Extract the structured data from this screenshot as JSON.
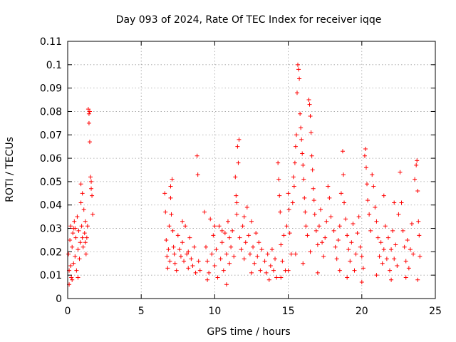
{
  "chart_data": {
    "type": "scatter",
    "title": "Day 093 of 2024, Rate Of TEC Index for receiver iqqe",
    "xlabel": "GPS time / hours",
    "ylabel": "ROTI / TECUs",
    "xlim": [
      0,
      25
    ],
    "ylim": [
      0,
      0.11
    ],
    "xticks": [
      0,
      5,
      10,
      15,
      20,
      25
    ],
    "xtick_labels": [
      "0",
      "5",
      "10",
      "15",
      "20",
      "25"
    ],
    "yticks": [
      0,
      0.01,
      0.02,
      0.03,
      0.04,
      0.05,
      0.06,
      0.07,
      0.08,
      0.09,
      0.1,
      0.11
    ],
    "ytick_labels": [
      "0",
      "0.01",
      "0.02",
      "0.03",
      "0.04",
      "0.05",
      "0.06",
      "0.07",
      "0.08",
      "0.09",
      "0.1",
      "0.11"
    ],
    "grid": true,
    "marker": "+",
    "marker_color": "#ff0000",
    "series": [
      {
        "name": "ROTI",
        "points": [
          [
            0.05,
            0.019
          ],
          [
            0.1,
            0.012
          ],
          [
            0.15,
            0.025
          ],
          [
            0.2,
            0.031
          ],
          [
            0.25,
            0.009
          ],
          [
            0.3,
            0.022
          ],
          [
            0.35,
            0.028
          ],
          [
            0.4,
            0.015
          ],
          [
            0.45,
            0.033
          ],
          [
            0.5,
            0.018
          ],
          [
            0.55,
            0.026
          ],
          [
            0.6,
            0.012
          ],
          [
            0.65,
            0.035
          ],
          [
            0.7,
            0.021
          ],
          [
            0.75,
            0.029
          ],
          [
            0.8,
            0.017
          ],
          [
            0.85,
            0.024
          ],
          [
            0.9,
            0.041
          ],
          [
            0.95,
            0.031
          ],
          [
            1.0,
            0.045
          ],
          [
            1.05,
            0.022
          ],
          [
            1.1,
            0.038
          ],
          [
            1.15,
            0.028
          ],
          [
            1.2,
            0.033
          ],
          [
            1.25,
            0.019
          ],
          [
            1.3,
            0.026
          ],
          [
            1.35,
            0.031
          ],
          [
            1.4,
            0.081
          ],
          [
            1.45,
            0.079
          ],
          [
            1.5,
            0.08
          ],
          [
            1.45,
            0.075
          ],
          [
            1.5,
            0.067
          ],
          [
            1.55,
            0.052
          ],
          [
            1.6,
            0.047
          ],
          [
            1.65,
            0.044
          ],
          [
            1.7,
            0.036
          ],
          [
            0.2,
            0.014
          ],
          [
            0.3,
            0.008
          ],
          [
            0.5,
            0.03
          ],
          [
            0.7,
            0.009
          ],
          [
            0.9,
            0.049
          ],
          [
            1.0,
            0.026
          ],
          [
            1.2,
            0.024
          ],
          [
            1.6,
            0.05
          ],
          [
            0.1,
            0.006
          ],
          [
            0.4,
            0.03
          ],
          [
            6.6,
            0.045
          ],
          [
            6.65,
            0.037
          ],
          [
            6.7,
            0.025
          ],
          [
            6.75,
            0.018
          ],
          [
            6.8,
            0.013
          ],
          [
            6.85,
            0.021
          ],
          [
            6.9,
            0.031
          ],
          [
            6.95,
            0.016
          ],
          [
            7.0,
            0.048
          ],
          [
            7.05,
            0.036
          ],
          [
            7.1,
            0.051
          ],
          [
            7.15,
            0.029
          ],
          [
            7.2,
            0.022
          ],
          [
            7.25,
            0.019
          ],
          [
            7.3,
            0.015
          ],
          [
            7.4,
            0.012
          ],
          [
            7.5,
            0.027
          ],
          [
            7.6,
            0.021
          ],
          [
            7.7,
            0.018
          ],
          [
            7.8,
            0.024
          ],
          [
            7.9,
            0.016
          ],
          [
            8.0,
            0.031
          ],
          [
            8.1,
            0.019
          ],
          [
            8.2,
            0.013
          ],
          [
            8.3,
            0.026
          ],
          [
            8.4,
            0.017
          ],
          [
            8.5,
            0.014
          ],
          [
            8.6,
            0.022
          ],
          [
            8.7,
            0.011
          ],
          [
            8.8,
            0.061
          ],
          [
            8.85,
            0.053
          ],
          [
            8.9,
            0.016
          ],
          [
            9.0,
            0.012
          ],
          [
            7.0,
            0.043
          ],
          [
            7.8,
            0.033
          ],
          [
            8.2,
            0.02
          ],
          [
            9.3,
            0.037
          ],
          [
            9.4,
            0.022
          ],
          [
            9.5,
            0.016
          ],
          [
            9.6,
            0.011
          ],
          [
            9.7,
            0.034
          ],
          [
            9.8,
            0.019
          ],
          [
            9.9,
            0.027
          ],
          [
            10.0,
            0.014
          ],
          [
            10.1,
            0.021
          ],
          [
            10.2,
            0.009
          ],
          [
            10.3,
            0.031
          ],
          [
            10.4,
            0.017
          ],
          [
            10.5,
            0.024
          ],
          [
            10.6,
            0.012
          ],
          [
            10.7,
            0.028
          ],
          [
            10.8,
            0.019
          ],
          [
            10.9,
            0.033
          ],
          [
            11.0,
            0.015
          ],
          [
            11.1,
            0.022
          ],
          [
            11.2,
            0.029
          ],
          [
            11.3,
            0.018
          ],
          [
            11.4,
            0.052
          ],
          [
            11.45,
            0.044
          ],
          [
            11.5,
            0.036
          ],
          [
            11.55,
            0.065
          ],
          [
            11.6,
            0.058
          ],
          [
            11.65,
            0.068
          ],
          [
            11.7,
            0.026
          ],
          [
            11.8,
            0.021
          ],
          [
            11.9,
            0.031
          ],
          [
            12.0,
            0.017
          ],
          [
            12.1,
            0.024
          ],
          [
            12.2,
            0.039
          ],
          [
            12.3,
            0.027
          ],
          [
            12.4,
            0.019
          ],
          [
            12.5,
            0.033
          ],
          [
            12.6,
            0.022
          ],
          [
            12.7,
            0.015
          ],
          [
            12.8,
            0.028
          ],
          [
            12.9,
            0.018
          ],
          [
            13.0,
            0.024
          ],
          [
            13.1,
            0.012
          ],
          [
            13.2,
            0.021
          ],
          [
            10.0,
            0.031
          ],
          [
            10.5,
            0.029
          ],
          [
            11.0,
            0.026
          ],
          [
            11.5,
            0.041
          ],
          [
            12.0,
            0.035
          ],
          [
            9.5,
            0.008
          ],
          [
            10.8,
            0.006
          ],
          [
            12.5,
            0.011
          ],
          [
            13.4,
            0.016
          ],
          [
            13.5,
            0.011
          ],
          [
            13.6,
            0.019
          ],
          [
            13.7,
            0.008
          ],
          [
            13.8,
            0.014
          ],
          [
            13.9,
            0.021
          ],
          [
            14.0,
            0.012
          ],
          [
            14.1,
            0.017
          ],
          [
            14.2,
            0.009
          ],
          [
            14.3,
            0.058
          ],
          [
            14.35,
            0.051
          ],
          [
            14.4,
            0.044
          ],
          [
            14.45,
            0.037
          ],
          [
            14.5,
            0.023
          ],
          [
            14.6,
            0.016
          ],
          [
            14.7,
            0.027
          ],
          [
            14.8,
            0.012
          ],
          [
            14.9,
            0.031
          ],
          [
            15.0,
            0.045
          ],
          [
            15.05,
            0.038
          ],
          [
            15.1,
            0.028
          ],
          [
            15.2,
            0.019
          ],
          [
            15.3,
            0.041
          ],
          [
            15.35,
            0.052
          ],
          [
            15.4,
            0.048
          ],
          [
            15.45,
            0.058
          ],
          [
            15.5,
            0.065
          ],
          [
            15.55,
            0.07
          ],
          [
            15.6,
            0.088
          ],
          [
            15.65,
            0.1
          ],
          [
            15.7,
            0.098
          ],
          [
            15.75,
            0.094
          ],
          [
            15.8,
            0.079
          ],
          [
            15.85,
            0.073
          ],
          [
            15.9,
            0.068
          ],
          [
            15.95,
            0.062
          ],
          [
            16.0,
            0.057
          ],
          [
            16.05,
            0.051
          ],
          [
            16.1,
            0.043
          ],
          [
            16.15,
            0.037
          ],
          [
            16.2,
            0.031
          ],
          [
            16.3,
            0.027
          ],
          [
            16.4,
            0.085
          ],
          [
            16.45,
            0.083
          ],
          [
            16.5,
            0.078
          ],
          [
            16.55,
            0.071
          ],
          [
            16.6,
            0.061
          ],
          [
            16.65,
            0.055
          ],
          [
            16.7,
            0.047
          ],
          [
            16.75,
            0.042
          ],
          [
            16.8,
            0.036
          ],
          [
            16.9,
            0.029
          ],
          [
            17.0,
            0.023
          ],
          [
            17.1,
            0.031
          ],
          [
            17.2,
            0.038
          ],
          [
            17.3,
            0.024
          ],
          [
            17.4,
            0.018
          ],
          [
            17.5,
            0.026
          ],
          [
            17.6,
            0.033
          ],
          [
            17.7,
            0.048
          ],
          [
            17.8,
            0.043
          ],
          [
            17.9,
            0.035
          ],
          [
            14.5,
            0.009
          ],
          [
            15.0,
            0.012
          ],
          [
            15.5,
            0.019
          ],
          [
            16.0,
            0.015
          ],
          [
            16.5,
            0.02
          ],
          [
            17.0,
            0.011
          ],
          [
            18.1,
            0.029
          ],
          [
            18.2,
            0.022
          ],
          [
            18.3,
            0.017
          ],
          [
            18.4,
            0.025
          ],
          [
            18.5,
            0.031
          ],
          [
            18.6,
            0.045
          ],
          [
            18.7,
            0.063
          ],
          [
            18.75,
            0.053
          ],
          [
            18.8,
            0.041
          ],
          [
            18.9,
            0.034
          ],
          [
            19.0,
            0.027
          ],
          [
            19.1,
            0.021
          ],
          [
            19.2,
            0.016
          ],
          [
            19.3,
            0.024
          ],
          [
            19.4,
            0.032
          ],
          [
            19.5,
            0.012
          ],
          [
            19.6,
            0.019
          ],
          [
            19.7,
            0.028
          ],
          [
            19.8,
            0.035
          ],
          [
            19.9,
            0.022
          ],
          [
            20.0,
            0.018
          ],
          [
            20.1,
            0.013
          ],
          [
            20.2,
            0.061
          ],
          [
            20.25,
            0.064
          ],
          [
            20.3,
            0.056
          ],
          [
            20.35,
            0.049
          ],
          [
            20.4,
            0.042
          ],
          [
            20.5,
            0.036
          ],
          [
            20.6,
            0.029
          ],
          [
            20.7,
            0.053
          ],
          [
            20.8,
            0.048
          ],
          [
            20.9,
            0.039
          ],
          [
            21.0,
            0.033
          ],
          [
            21.1,
            0.026
          ],
          [
            21.2,
            0.018
          ],
          [
            21.3,
            0.024
          ],
          [
            21.4,
            0.015
          ],
          [
            21.5,
            0.021
          ],
          [
            21.6,
            0.031
          ],
          [
            21.7,
            0.017
          ],
          [
            21.8,
            0.026
          ],
          [
            21.9,
            0.012
          ],
          [
            22.0,
            0.021
          ],
          [
            22.1,
            0.029
          ],
          [
            22.2,
            0.017
          ],
          [
            22.3,
            0.023
          ],
          [
            22.4,
            0.014
          ],
          [
            22.5,
            0.036
          ],
          [
            22.6,
            0.054
          ],
          [
            22.7,
            0.041
          ],
          [
            22.8,
            0.029
          ],
          [
            22.9,
            0.022
          ],
          [
            23.0,
            0.016
          ],
          [
            23.1,
            0.025
          ],
          [
            23.2,
            0.013
          ],
          [
            23.3,
            0.021
          ],
          [
            23.4,
            0.032
          ],
          [
            23.5,
            0.019
          ],
          [
            23.6,
            0.051
          ],
          [
            23.7,
            0.057
          ],
          [
            23.75,
            0.059
          ],
          [
            23.8,
            0.046
          ],
          [
            23.85,
            0.033
          ],
          [
            23.9,
            0.027
          ],
          [
            23.95,
            0.018
          ],
          [
            19.0,
            0.009
          ],
          [
            20.0,
            0.007
          ],
          [
            21.0,
            0.01
          ],
          [
            22.0,
            0.008
          ],
          [
            23.0,
            0.009
          ],
          [
            23.8,
            0.008
          ],
          [
            18.5,
            0.012
          ],
          [
            21.5,
            0.044
          ],
          [
            22.2,
            0.041
          ]
        ]
      }
    ]
  }
}
